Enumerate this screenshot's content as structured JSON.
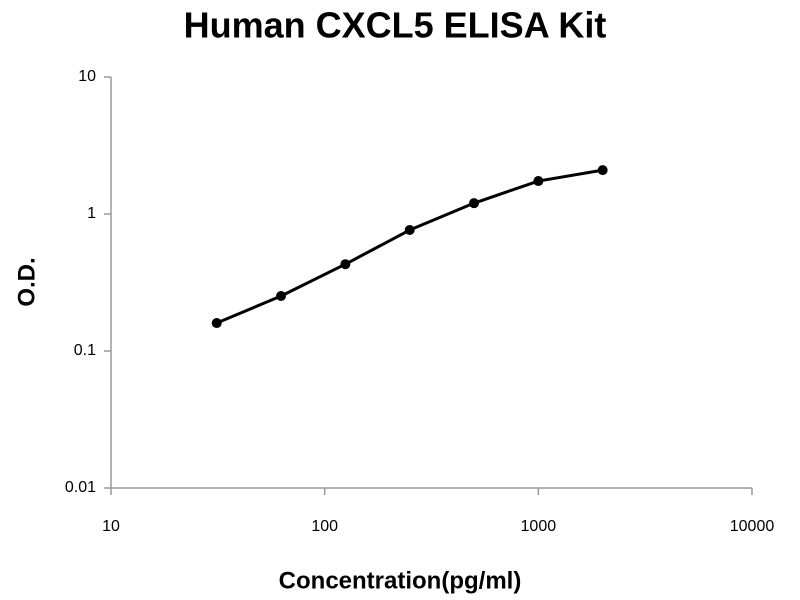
{
  "chart_data": {
    "type": "line",
    "title": "Human CXCL5 ELISA Kit",
    "x_label": "Concentration(pg/ml)",
    "y_label": "O.D.",
    "x": [
      31.25,
      62.5,
      125,
      250,
      500,
      1000,
      2000
    ],
    "series": [
      {
        "color": "#000000",
        "values": [
          0.16,
          0.252,
          0.43,
          0.764,
          1.2,
          1.74,
          2.09
        ]
      }
    ],
    "x_log": true,
    "y_log": true,
    "xlim": [
      10,
      10000
    ],
    "xticks": [
      10,
      100,
      1000,
      10000
    ],
    "ylim": [
      0.01,
      10
    ],
    "yticks": [
      0.01,
      0.1,
      1,
      10
    ],
    "grid": false
  }
}
